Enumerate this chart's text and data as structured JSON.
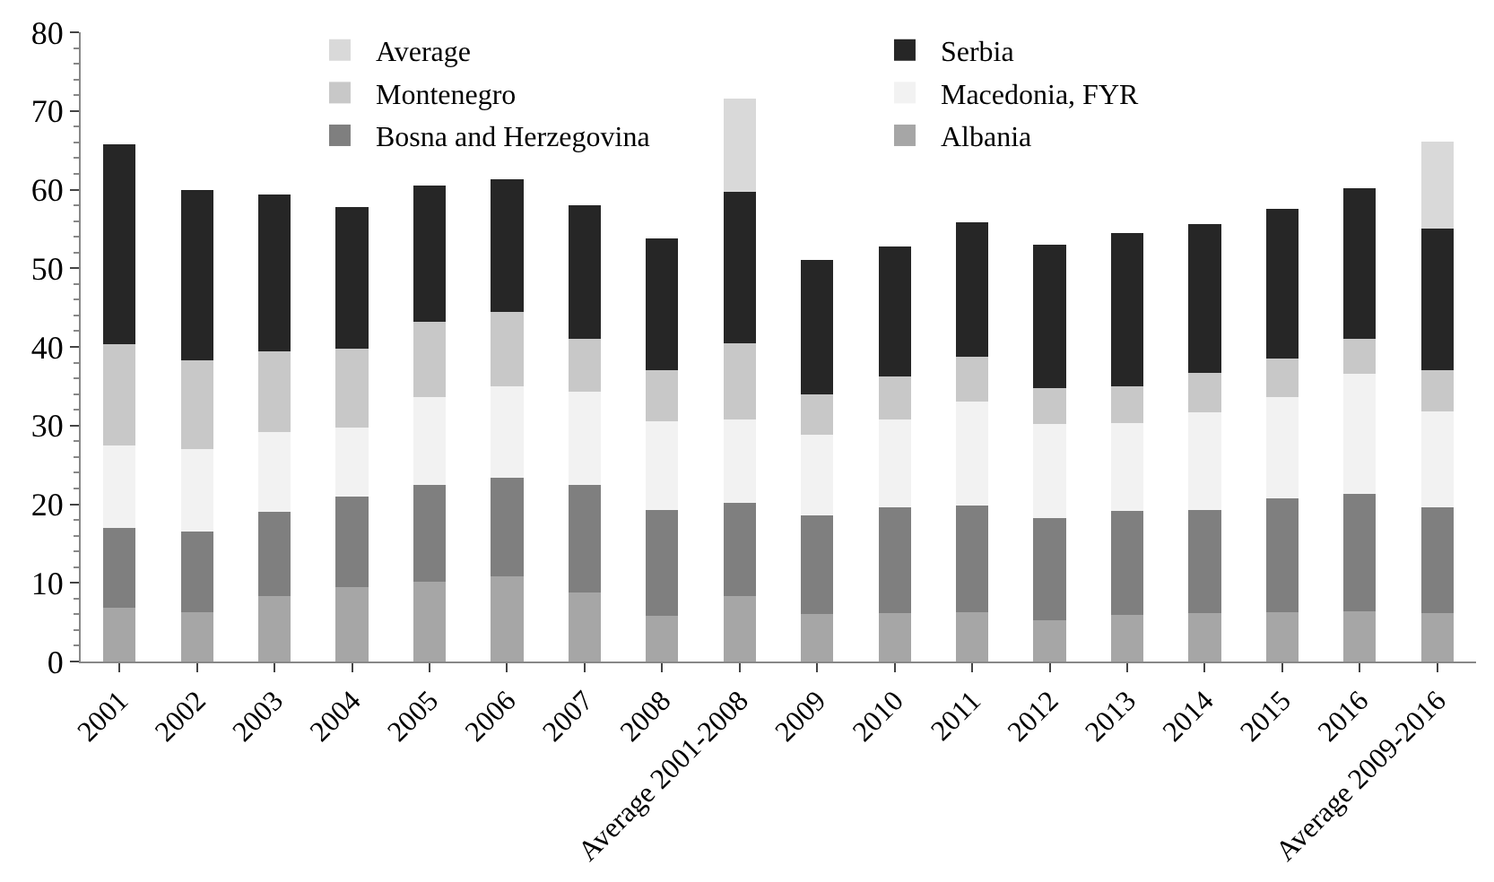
{
  "chart_data": {
    "type": "bar",
    "stacked": true,
    "legend": "top",
    "categories": [
      "2001",
      "2002",
      "2003",
      "2004",
      "2005",
      "2006",
      "2007",
      "2008",
      "Average 2001-2008",
      "2009",
      "2010",
      "2011",
      "2012",
      "2013",
      "2014",
      "2015",
      "2016",
      "Average 2009-2016"
    ],
    "ylim": [
      0,
      80
    ],
    "yticks": [
      0,
      10,
      20,
      30,
      40,
      50,
      60,
      70,
      80
    ],
    "series": [
      {
        "name": "Albania",
        "color": "#a6a6a6",
        "values": [
          6.8,
          6.3,
          8.3,
          9.5,
          10.2,
          10.8,
          8.8,
          5.8,
          8.3,
          6.0,
          6.1,
          6.3,
          5.3,
          5.9,
          6.2,
          6.3,
          6.4,
          6.2
        ]
      },
      {
        "name": "Bosna and Herzegovina",
        "color": "#7f7f7f",
        "values": [
          10.2,
          10.2,
          10.7,
          11.5,
          12.2,
          12.6,
          13.6,
          13.5,
          11.9,
          12.6,
          13.5,
          13.5,
          12.9,
          13.2,
          13.1,
          14.4,
          14.9,
          13.4
        ]
      },
      {
        "name": "Macedonia, FYR",
        "color": "#f2f2f2",
        "values": [
          10.5,
          10.5,
          10.2,
          8.7,
          11.2,
          11.6,
          11.9,
          11.2,
          10.6,
          10.2,
          11.2,
          13.2,
          12.0,
          11.2,
          12.4,
          12.9,
          15.3,
          12.2
        ]
      },
      {
        "name": "Montenegro",
        "color": "#c8c8c8",
        "values": [
          12.8,
          11.3,
          10.2,
          10.1,
          9.6,
          9.5,
          6.7,
          6.5,
          9.7,
          5.2,
          5.4,
          5.8,
          4.6,
          4.7,
          5.0,
          4.9,
          4.4,
          5.2
        ]
      },
      {
        "name": "Serbia",
        "color": "#262626",
        "values": [
          25.4,
          21.7,
          20.0,
          18.0,
          17.3,
          16.8,
          17.0,
          16.8,
          19.2,
          17.0,
          16.6,
          17.0,
          18.2,
          19.5,
          18.9,
          19.0,
          19.2,
          18.0
        ]
      },
      {
        "name": "Average",
        "color": "#d9d9d9",
        "values": [
          null,
          null,
          null,
          null,
          null,
          null,
          null,
          null,
          11.9,
          null,
          null,
          null,
          null,
          null,
          null,
          null,
          null,
          11.1
        ]
      }
    ]
  }
}
